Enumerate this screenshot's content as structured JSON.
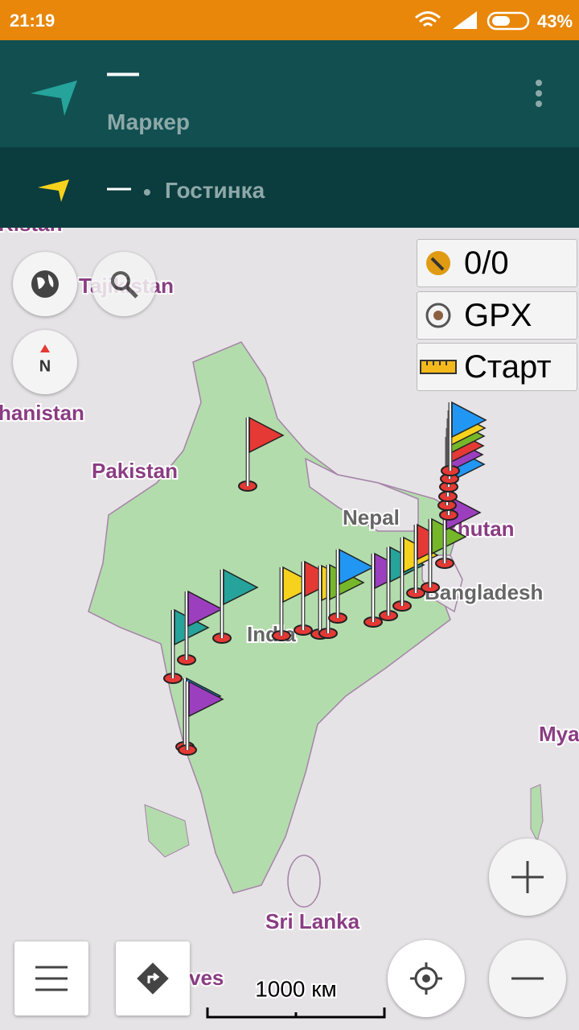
{
  "status_bar": {
    "time": "21:19",
    "battery": "43%"
  },
  "header": {
    "distance": "—",
    "title": "Маркер",
    "second_distance": "—",
    "second_title": "Гостинка"
  },
  "map_labels": [
    "Kistan",
    "Tajikistan",
    "hanistan",
    "Pakistan",
    "Nepal",
    "Bhutan",
    "Bangladesh",
    "India",
    "Mya",
    "Sri Lanka",
    "ves"
  ],
  "widgets": [
    "0/0",
    "GPX",
    "Старт"
  ],
  "scale": "1000 км"
}
